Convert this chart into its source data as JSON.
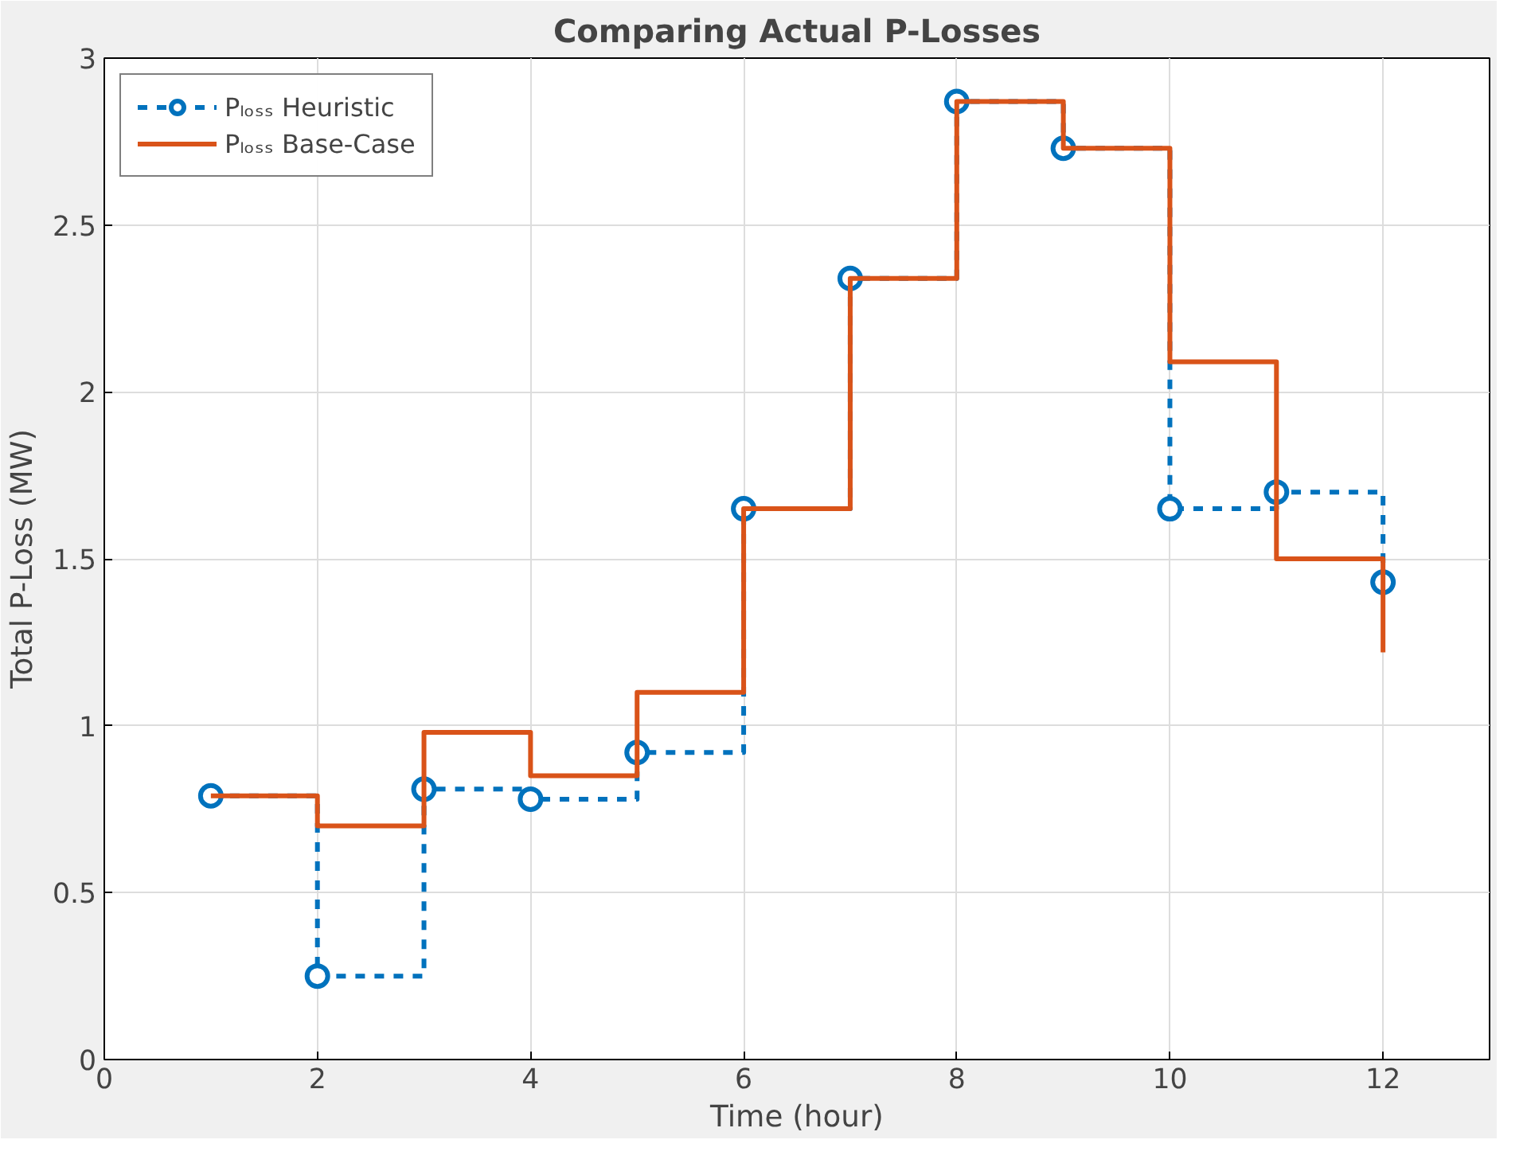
{
  "chart_data": {
    "type": "step",
    "title": "Comparing Actual P-Losses",
    "xlabel": "Time (hour)",
    "ylabel": "Total P-Loss (MW)",
    "x": [
      1,
      2,
      3,
      4,
      5,
      6,
      7,
      8,
      9,
      10,
      11,
      12
    ],
    "series": [
      {
        "name": "Pₗₒₛₛ Heuristic",
        "color": "#0072bd",
        "marker": "circle",
        "line_style": "dashed",
        "values": [
          0.79,
          0.25,
          0.81,
          0.78,
          0.92,
          1.65,
          2.34,
          2.87,
          2.73,
          1.65,
          1.7,
          1.43
        ]
      },
      {
        "name": "Pₗₒₛₛ Base-Case",
        "color": "#d95319",
        "marker": "none",
        "line_style": "solid",
        "values": [
          0.79,
          0.7,
          0.98,
          0.85,
          1.1,
          1.65,
          2.34,
          2.87,
          2.73,
          2.09,
          1.5,
          1.22
        ]
      }
    ],
    "xlim": [
      0,
      13
    ],
    "ylim": [
      0,
      3
    ],
    "xticks": [
      0,
      2,
      4,
      6,
      8,
      10,
      12
    ],
    "yticks": [
      0,
      0.5,
      1,
      1.5,
      2,
      2.5,
      3
    ],
    "grid": true,
    "legend": "top left"
  }
}
